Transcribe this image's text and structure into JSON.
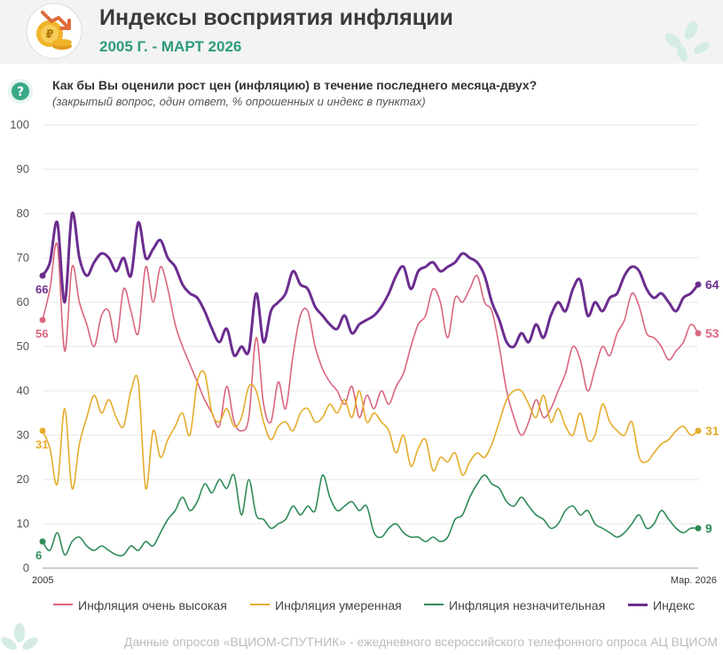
{
  "header": {
    "title": "Индексы восприятия инфляции",
    "subtitle": "2005 Г. - МАРТ 2026"
  },
  "question": {
    "text": "Как бы Вы оценили рост цен (инфляцию) в течение последнего месяца-двух?",
    "note": "(закрытый вопрос, один ответ, % опрошенных и индекс в пунктах)"
  },
  "footer": {
    "source": "Данные опросов «ВЦИОМ-СПУТНИК» - ежедневного всероссийского телефонного опроса АЦ ВЦИОМ"
  },
  "chart_data": {
    "type": "line",
    "x_start_label": "2005",
    "x_end_label": "Мар. 2026",
    "ylim": [
      0,
      100
    ],
    "y_ticks": [
      "0",
      "10",
      "20",
      "30",
      "40",
      "50",
      "60",
      "70",
      "80",
      "90",
      "100"
    ],
    "grid": "horizontal",
    "legend_position": "bottom",
    "series": [
      {
        "name": "Инфляция очень высокая",
        "color": "#d9667e",
        "start_label": "56",
        "end_label": "53",
        "values": [
          56,
          63,
          73,
          49,
          68,
          60,
          55,
          50,
          57,
          58,
          51,
          63,
          58,
          53,
          68,
          60,
          68,
          63,
          55,
          50,
          46,
          42,
          38,
          35,
          32,
          41,
          33,
          31,
          34,
          52,
          37,
          33,
          42,
          36,
          48,
          57,
          58,
          50,
          45,
          42,
          40,
          37,
          41,
          34,
          39,
          36,
          40,
          37,
          41,
          44,
          50,
          55,
          57,
          63,
          60,
          52,
          61,
          60,
          63,
          66,
          60,
          58,
          50,
          40,
          34,
          30,
          33,
          38,
          34,
          36,
          40,
          44,
          50,
          47,
          40,
          45,
          50,
          48,
          53,
          56,
          62,
          59,
          53,
          52,
          50,
          47,
          49,
          51,
          55,
          53
        ]
      },
      {
        "name": "Инфляция умеренная",
        "color": "#e5ac2b",
        "start_label": "31",
        "end_label": "31",
        "values": [
          31,
          27,
          19,
          36,
          18,
          28,
          34,
          39,
          35,
          38,
          34,
          32,
          40,
          42,
          18,
          31,
          25,
          29,
          32,
          35,
          30,
          42,
          44,
          35,
          33,
          36,
          32,
          34,
          41,
          40,
          33,
          29,
          32,
          33,
          31,
          35,
          36,
          33,
          34,
          37,
          35,
          38,
          34,
          40,
          33,
          35,
          33,
          31,
          26,
          30,
          23,
          27,
          29,
          22,
          25,
          24,
          26,
          21,
          24,
          26,
          25,
          28,
          33,
          38,
          40,
          40,
          37,
          34,
          39,
          33,
          36,
          32,
          30,
          35,
          29,
          30,
          37,
          33,
          31,
          30,
          33,
          25,
          24,
          26,
          28,
          29,
          31,
          32,
          30,
          31
        ]
      },
      {
        "name": "Инфляция незначительная",
        "color": "#2e8b57",
        "start_label": "6",
        "end_label": "9",
        "values": [
          6,
          4,
          8,
          3,
          6,
          7,
          5,
          4,
          5,
          4,
          3,
          3,
          5,
          4,
          6,
          5,
          8,
          11,
          13,
          16,
          13,
          15,
          19,
          17,
          20,
          18,
          21,
          12,
          20,
          12,
          11,
          9,
          10,
          11,
          14,
          12,
          14,
          13,
          21,
          16,
          13,
          14,
          15,
          13,
          14,
          8,
          7,
          9,
          10,
          8,
          7,
          7,
          6,
          7,
          6,
          7,
          11,
          12,
          16,
          19,
          21,
          19,
          18,
          15,
          14,
          16,
          14,
          12,
          11,
          9,
          10,
          13,
          14,
          12,
          13,
          10,
          9,
          8,
          7,
          8,
          10,
          12,
          9,
          10,
          13,
          11,
          9,
          8,
          9,
          9
        ]
      },
      {
        "name": "Индекс",
        "color": "#6b2d8f",
        "start_label": "66",
        "end_label": "64",
        "values": [
          66,
          69,
          78,
          60,
          80,
          70,
          66,
          69,
          71,
          70,
          67,
          70,
          66,
          78,
          70,
          72,
          74,
          70,
          68,
          64,
          62,
          61,
          58,
          54,
          51,
          54,
          48,
          50,
          49,
          62,
          51,
          58,
          60,
          62,
          67,
          64,
          63,
          59,
          57,
          55,
          54,
          57,
          53,
          55,
          56,
          57,
          59,
          62,
          66,
          68,
          63,
          67,
          68,
          69,
          67,
          68,
          69,
          71,
          70,
          69,
          66,
          60,
          56,
          51,
          50,
          53,
          51,
          55,
          52,
          57,
          60,
          58,
          63,
          65,
          57,
          60,
          58,
          61,
          62,
          66,
          68,
          67,
          63,
          61,
          62,
          60,
          58,
          61,
          62,
          64
        ]
      }
    ]
  }
}
